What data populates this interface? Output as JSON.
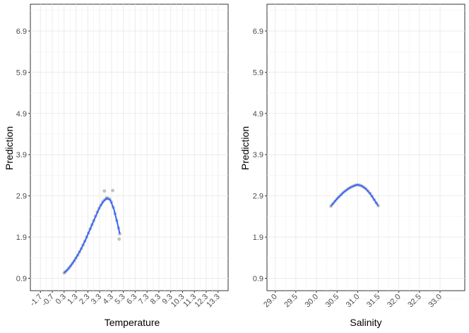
{
  "chart_data": [
    {
      "type": "scatter",
      "xlabel": "Temperature",
      "ylabel": "Prediction",
      "xlim": [
        -2.55,
        14.15
      ],
      "ylim": [
        0.6,
        7.55
      ],
      "xticks": [
        "-1.7",
        "-0.7",
        "0.3",
        "1.3",
        "2.3",
        "3.3",
        "4.3",
        "5.3",
        "6.3",
        "7.3",
        "8.3",
        "9.3",
        "10.3",
        "11.3",
        "12.3",
        "13.3"
      ],
      "yticks": [
        "0.9",
        "1.9",
        "2.9",
        "3.9",
        "4.9",
        "5.9",
        "6.9"
      ],
      "grid": true,
      "colors": {
        "points": "#999999",
        "line": "#3366ff"
      },
      "points": [
        [
          0.3,
          1.03
        ],
        [
          0.4,
          1.06
        ],
        [
          0.55,
          1.1
        ],
        [
          0.7,
          1.15
        ],
        [
          0.85,
          1.2
        ],
        [
          1.0,
          1.26
        ],
        [
          1.15,
          1.32
        ],
        [
          1.3,
          1.39
        ],
        [
          1.45,
          1.46
        ],
        [
          1.6,
          1.54
        ],
        [
          1.75,
          1.62
        ],
        [
          1.9,
          1.71
        ],
        [
          2.05,
          1.8
        ],
        [
          2.2,
          1.9
        ],
        [
          2.35,
          2.0
        ],
        [
          2.5,
          2.1
        ],
        [
          2.65,
          2.2
        ],
        [
          2.8,
          2.3
        ],
        [
          2.95,
          2.41
        ],
        [
          3.1,
          2.51
        ],
        [
          3.25,
          2.6
        ],
        [
          3.4,
          2.68
        ],
        [
          3.55,
          2.75
        ],
        [
          3.7,
          2.8
        ],
        [
          3.85,
          2.83
        ],
        [
          4.0,
          2.84
        ],
        [
          4.15,
          2.82
        ],
        [
          4.3,
          2.75
        ],
        [
          4.45,
          2.62
        ],
        [
          4.6,
          2.47
        ],
        [
          4.75,
          2.3
        ],
        [
          4.9,
          2.12
        ],
        [
          5.0,
          1.98
        ],
        [
          3.7,
          3.02
        ],
        [
          4.4,
          3.03
        ],
        [
          4.95,
          1.85
        ],
        [
          3.9,
          2.85
        ]
      ],
      "line": {
        "x": [
          0.3,
          0.6,
          0.9,
          1.2,
          1.5,
          1.8,
          2.1,
          2.4,
          2.7,
          3.0,
          3.3,
          3.6,
          3.9,
          4.2,
          4.5,
          4.8,
          5.0
        ],
        "y": [
          1.03,
          1.11,
          1.22,
          1.35,
          1.49,
          1.65,
          1.83,
          2.03,
          2.23,
          2.43,
          2.62,
          2.76,
          2.84,
          2.8,
          2.58,
          2.24,
          1.98
        ]
      }
    },
    {
      "type": "scatter",
      "xlabel": "Salinity",
      "ylabel": "Prediction",
      "xlim": [
        28.8,
        33.6
      ],
      "ylim": [
        0.6,
        7.55
      ],
      "xticks": [
        "29.0",
        "29.5",
        "30.0",
        "30.5",
        "31.0",
        "31.5",
        "32.0",
        "32.5",
        "33.0"
      ],
      "yticks": [
        "0.9",
        "1.9",
        "2.9",
        "3.9",
        "4.9",
        "5.9",
        "6.9"
      ],
      "grid": true,
      "colors": {
        "points": "#999999",
        "line": "#3366ff"
      },
      "points": [
        [
          30.35,
          2.65
        ],
        [
          30.4,
          2.71
        ],
        [
          30.45,
          2.77
        ],
        [
          30.5,
          2.83
        ],
        [
          30.55,
          2.88
        ],
        [
          30.6,
          2.93
        ],
        [
          30.65,
          2.98
        ],
        [
          30.7,
          3.02
        ],
        [
          30.75,
          3.06
        ],
        [
          30.8,
          3.09
        ],
        [
          30.85,
          3.12
        ],
        [
          30.9,
          3.14
        ],
        [
          30.95,
          3.16
        ],
        [
          31.0,
          3.17
        ],
        [
          31.05,
          3.16
        ],
        [
          31.1,
          3.14
        ],
        [
          31.15,
          3.11
        ],
        [
          31.2,
          3.07
        ],
        [
          31.25,
          3.02
        ],
        [
          31.3,
          2.96
        ],
        [
          31.35,
          2.89
        ],
        [
          31.4,
          2.81
        ],
        [
          31.45,
          2.73
        ],
        [
          31.5,
          2.66
        ]
      ],
      "line": {
        "x": [
          30.35,
          30.5,
          30.65,
          30.8,
          30.95,
          31.0,
          31.1,
          31.2,
          31.3,
          31.4,
          31.5
        ],
        "y": [
          2.65,
          2.83,
          2.98,
          3.09,
          3.16,
          3.17,
          3.14,
          3.07,
          2.96,
          2.81,
          2.66
        ]
      }
    }
  ]
}
